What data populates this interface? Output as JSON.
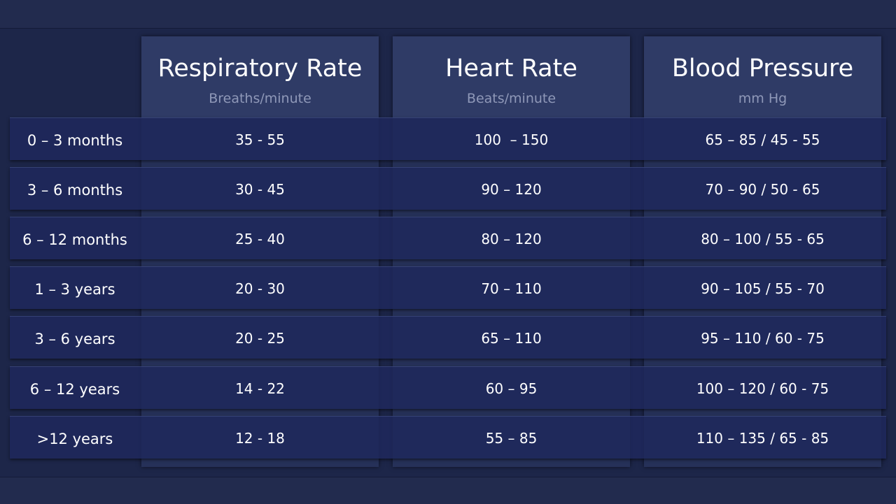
{
  "columns": [
    {
      "title": "Respiratory Rate",
      "unit": "Breaths/minute"
    },
    {
      "title": "Heart Rate",
      "unit": "Beats/minute"
    },
    {
      "title": "Blood Pressure",
      "unit": "mm Hg"
    }
  ],
  "rows": [
    {
      "label": "0 – 3 months",
      "values": [
        "35 - 55",
        "100  – 150",
        "65 – 85 / 45 - 55"
      ]
    },
    {
      "label": "3 – 6 months",
      "values": [
        "30 - 45",
        "90 – 120",
        "70 – 90 / 50 - 65"
      ]
    },
    {
      "label": "6 – 12 months",
      "values": [
        "25 - 40",
        "80 – 120",
        "80 – 100 / 55 - 65"
      ]
    },
    {
      "label": "1 – 3 years",
      "values": [
        "20 - 30",
        "70 – 110",
        "90 – 105 / 55 - 70"
      ]
    },
    {
      "label": "3 – 6 years",
      "values": [
        "20 - 25",
        "65 – 110",
        "95 – 110 / 60 - 75"
      ]
    },
    {
      "label": "6 – 12 years",
      "values": [
        "14 - 22",
        "60 – 95",
        "100 – 120 / 60 - 75"
      ]
    },
    {
      "label": ">12 years",
      "values": [
        "12 - 18",
        "55 – 85",
        "110 – 135 / 65 - 85"
      ]
    }
  ]
}
